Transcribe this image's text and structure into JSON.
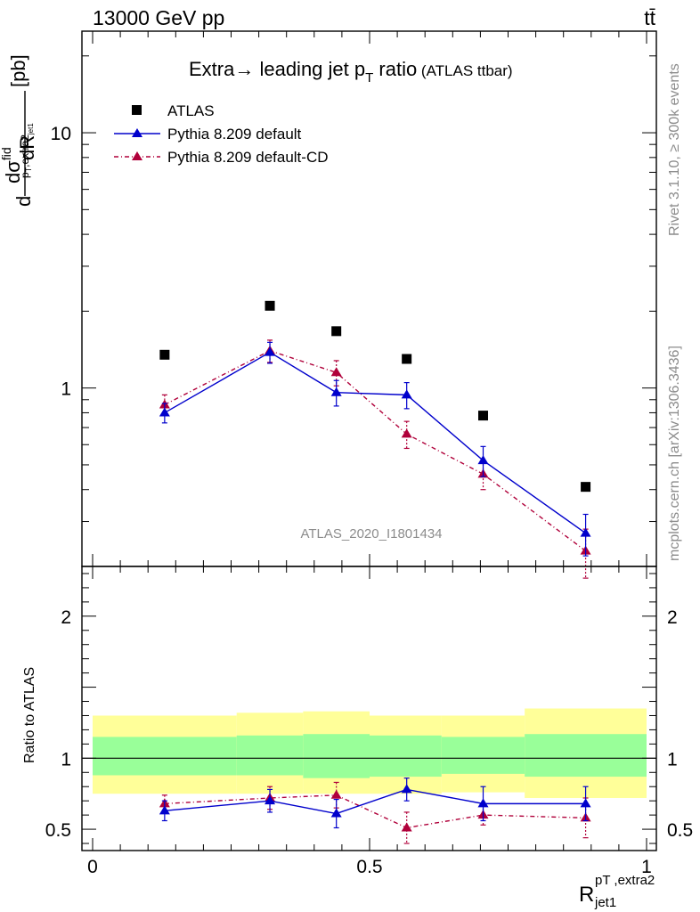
{
  "header": {
    "left": "13000 GeV pp",
    "right": "tt̄"
  },
  "title": {
    "main": "Extra→ leading jet p",
    "main_sub": "T",
    "main_tail": " ratio",
    "extra": " (ATLAS ttbar)"
  },
  "side_labels": {
    "rivet": "Rivet 3.1.10, ≥ 300k events",
    "mcplots": "mcplots.cern.ch [arXiv:1306.3436]"
  },
  "watermark": "ATLAS_2020_I1801434",
  "ylabel_top": {
    "d1": "d",
    "dsigma": "dσ",
    "fid": "fid",
    "sub": "p",
    "sub2": "T",
    "sub3": ",extra2",
    "sub4": "jet1",
    "dR": "dR",
    "unit": "[pb]"
  },
  "ylabel_bottom": "Ratio to ATLAS",
  "xlabel": {
    "R": "R",
    "sup": "pT ,extra2",
    "sub": "jet1"
  },
  "legend": [
    {
      "label": "ATLAS",
      "marker": "square",
      "color": "#000000"
    },
    {
      "label": "Pythia 8.209 default",
      "marker": "triangle",
      "color": "#0000cc"
    },
    {
      "label": "Pythia 8.209 default-CD",
      "marker": "triangle",
      "color": "#b0003a"
    }
  ],
  "chart_data": {
    "type": "scatter",
    "x": [
      0.13,
      0.32,
      0.44,
      0.567,
      0.705,
      0.89
    ],
    "x_edges": [
      0,
      0.26,
      0.38,
      0.5,
      0.63,
      0.78,
      1.0
    ],
    "xlim": [
      0,
      1
    ],
    "xticks": [
      "0",
      "0.5",
      "1"
    ],
    "top": {
      "yscale": "log",
      "ylim": [
        0.2,
        25
      ],
      "yticks": [
        "1",
        "10"
      ],
      "series": [
        {
          "name": "ATLAS",
          "values": [
            1.35,
            2.1,
            1.67,
            1.3,
            0.78,
            0.41
          ],
          "err": [
            0,
            0,
            0,
            0,
            0,
            0
          ]
        },
        {
          "name": "Pythia 8.209 default",
          "values": [
            0.8,
            1.38,
            0.96,
            0.94,
            0.52,
            0.27
          ],
          "err": [
            0.07,
            0.13,
            0.11,
            0.11,
            0.07,
            0.05
          ]
        },
        {
          "name": "Pythia 8.209 default-CD",
          "values": [
            0.86,
            1.4,
            1.15,
            0.66,
            0.46,
            0.23
          ],
          "err": [
            0.08,
            0.14,
            0.13,
            0.08,
            0.06,
            0.05
          ]
        }
      ]
    },
    "bottom": {
      "ylim": [
        0.35,
        2.35
      ],
      "yticks": [
        "0.5",
        "1",
        "2"
      ],
      "bands_outer": [
        [
          0.75,
          1.3
        ],
        [
          0.75,
          1.32
        ],
        [
          0.75,
          1.33
        ],
        [
          0.75,
          1.3
        ],
        [
          0.76,
          1.3
        ],
        [
          0.72,
          1.35
        ]
      ],
      "bands_inner": [
        [
          0.88,
          1.15
        ],
        [
          0.88,
          1.16
        ],
        [
          0.86,
          1.17
        ],
        [
          0.87,
          1.16
        ],
        [
          0.89,
          1.15
        ],
        [
          0.87,
          1.17
        ]
      ],
      "series": [
        {
          "name": "Pythia 8.209 default",
          "values": [
            0.63,
            0.7,
            0.61,
            0.78,
            0.68,
            0.68
          ],
          "err": [
            0.07,
            0.08,
            0.1,
            0.08,
            0.12,
            0.12
          ]
        },
        {
          "name": "Pythia 8.209 default-CD",
          "values": [
            0.68,
            0.72,
            0.74,
            0.51,
            0.6,
            0.58
          ],
          "err": [
            0.06,
            0.08,
            0.09,
            0.11,
            0.07,
            0.14
          ]
        }
      ]
    }
  }
}
